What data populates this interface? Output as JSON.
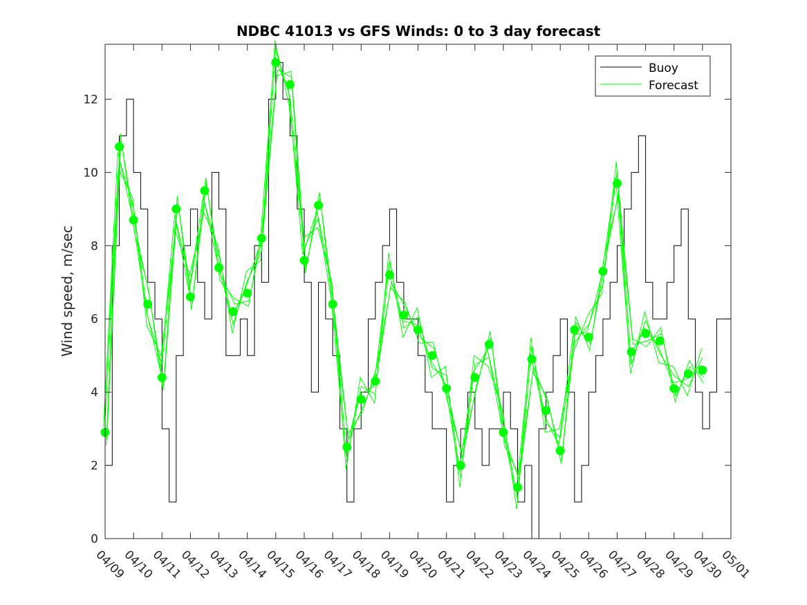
{
  "chart_data": {
    "type": "line",
    "title": "NDBC 41013 vs GFS Winds: 0 to 3 day forecast",
    "xlabel": "",
    "ylabel": "Wind speed, m/sec",
    "xlim": [
      "04/09",
      "05/01"
    ],
    "ylim": [
      0,
      13.5
    ],
    "x_ticks": [
      "04/09",
      "04/10",
      "04/11",
      "04/12",
      "04/13",
      "04/14",
      "04/15",
      "04/16",
      "04/17",
      "04/18",
      "04/19",
      "04/20",
      "04/21",
      "04/22",
      "04/23",
      "04/24",
      "04/25",
      "04/26",
      "04/27",
      "04/28",
      "04/29",
      "04/30",
      "05/01"
    ],
    "y_ticks": [
      "0",
      "2",
      "4",
      "6",
      "8",
      "10",
      "12"
    ],
    "legend": {
      "position": "top-right",
      "entries": [
        "Buoy",
        "Forecast"
      ]
    },
    "colors": {
      "buoy": "#000000",
      "forecast": "#00ff00"
    },
    "series": [
      {
        "name": "Buoy",
        "x": [
          "04/09",
          "04/09 06h",
          "04/09 12h",
          "04/09 18h",
          "04/10",
          "04/10 06h",
          "04/10 12h",
          "04/10 18h",
          "04/11",
          "04/11 06h",
          "04/11 12h",
          "04/11 18h",
          "04/12",
          "04/12 06h",
          "04/12 12h",
          "04/12 18h",
          "04/13",
          "04/13 06h",
          "04/13 12h",
          "04/13 18h",
          "04/14",
          "04/14 06h",
          "04/14 12h",
          "04/14 18h",
          "04/15",
          "04/15 06h",
          "04/15 12h",
          "04/15 18h",
          "04/16",
          "04/16 06h",
          "04/16 12h",
          "04/16 18h",
          "04/17",
          "04/17 06h",
          "04/17 12h",
          "04/17 18h",
          "04/18",
          "04/18 06h",
          "04/18 12h",
          "04/18 18h",
          "04/19",
          "04/19 06h",
          "04/19 12h",
          "04/19 18h",
          "04/20",
          "04/20 06h",
          "04/20 12h",
          "04/20 18h",
          "04/21",
          "04/21 06h",
          "04/21 12h",
          "04/21 18h",
          "04/22",
          "04/22 06h",
          "04/22 12h",
          "04/22 18h",
          "04/23",
          "04/23 06h",
          "04/23 12h",
          "04/23 18h",
          "04/24",
          "04/24 06h",
          "04/24 12h",
          "04/24 18h",
          "04/25",
          "04/25 06h",
          "04/25 12h",
          "04/25 18h",
          "04/26",
          "04/26 06h",
          "04/26 12h",
          "04/26 18h",
          "04/27",
          "04/27 06h",
          "04/27 12h",
          "04/27 18h",
          "04/28",
          "04/28 06h",
          "04/28 12h",
          "04/28 18h",
          "04/29",
          "04/29 06h",
          "04/29 12h",
          "04/29 18h",
          "04/30",
          "04/30 06h",
          "04/30 12h"
        ],
        "values": [
          2,
          8,
          11,
          12,
          10,
          9,
          7,
          6,
          3,
          1,
          5,
          8,
          9,
          7,
          6,
          10,
          9,
          5,
          5,
          6,
          5,
          8,
          7,
          12,
          13,
          12,
          11,
          9,
          7,
          4,
          7,
          6,
          5,
          3,
          1,
          3,
          4,
          6,
          7,
          8,
          9,
          7,
          6,
          6,
          5,
          4,
          3,
          3,
          1,
          2,
          3,
          4,
          3,
          2,
          3,
          3,
          4,
          3,
          1,
          2,
          0,
          3,
          4,
          5,
          6,
          4,
          1,
          2,
          4,
          5,
          6,
          7,
          8,
          9,
          10,
          11,
          7,
          6,
          6,
          7,
          8,
          9,
          6,
          4,
          3,
          4,
          6
        ]
      },
      {
        "name": "Forecast",
        "x": [
          "04/09",
          "04/09 12h",
          "04/10",
          "04/10 12h",
          "04/11",
          "04/11 12h",
          "04/12",
          "04/12 12h",
          "04/13",
          "04/13 12h",
          "04/14",
          "04/14 12h",
          "04/15",
          "04/15 12h",
          "04/16",
          "04/16 12h",
          "04/17",
          "04/17 12h",
          "04/18",
          "04/18 12h",
          "04/19",
          "04/19 12h",
          "04/20",
          "04/20 12h",
          "04/21",
          "04/21 12h",
          "04/22",
          "04/22 12h",
          "04/23",
          "04/23 12h",
          "04/24",
          "04/24 12h",
          "04/25",
          "04/25 12h",
          "04/26",
          "04/26 12h",
          "04/27",
          "04/27 12h",
          "04/28",
          "04/28 12h",
          "04/29",
          "04/29 12h",
          "04/30"
        ],
        "values": [
          2.9,
          10.7,
          8.7,
          6.4,
          4.4,
          9.0,
          6.6,
          9.5,
          7.4,
          6.2,
          6.7,
          8.2,
          13.0,
          12.4,
          7.6,
          9.1,
          6.4,
          2.5,
          3.8,
          4.3,
          7.2,
          6.1,
          5.7,
          5.0,
          4.1,
          2.0,
          4.4,
          5.3,
          2.9,
          1.4,
          4.9,
          3.5,
          2.4,
          5.7,
          5.5,
          7.3,
          9.7,
          5.1,
          5.6,
          5.4,
          4.1,
          4.5,
          4.6
        ]
      }
    ]
  }
}
